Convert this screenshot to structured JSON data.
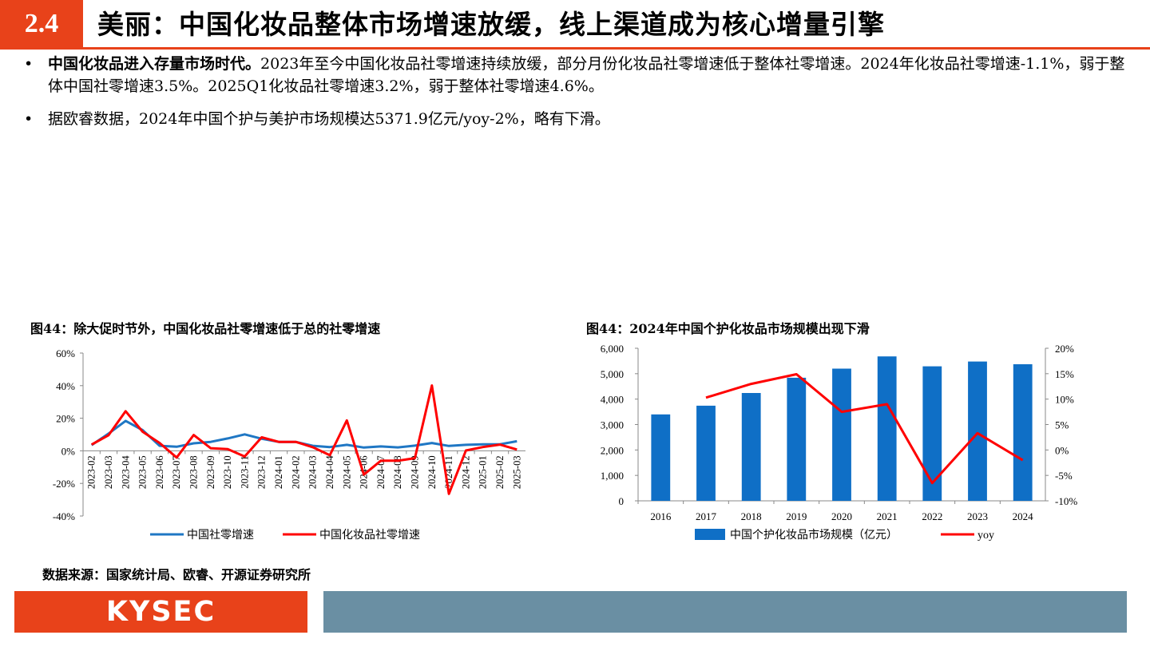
{
  "header": {
    "section_number": "2.4",
    "title": "美丽：中国化妆品整体市场增速放缓，线上渠道成为核心增量引擎"
  },
  "bullets": [
    {
      "marker": "•",
      "bold": "中国化妆品进入存量市场时代。",
      "text": "2023年至今中国化妆品社零增速持续放缓，部分月份化妆品社零增速低于整体社零增速。2024年化妆品社零增速-1.1%，弱于整体中国社零增速3.5%。2025Q1化妆品社零增速3.2%，弱于整体社零增速4.6%。"
    },
    {
      "marker": "•",
      "bold": "",
      "text": "据欧睿数据，2024年中国个护与美护市场规模达5371.9亿元/yoy-2%，略有下滑。"
    }
  ],
  "figure_left": {
    "title": "图44：除大促时节外，中国化妆品社零增速低于总的社零增速"
  },
  "figure_right": {
    "title": "图44：2024年中国个护化妆品市场规模出现下滑"
  },
  "source": "数据来源：国家统计局、欧睿、开源证券研究所",
  "footer": {
    "logo": "KYSEC"
  },
  "colors": {
    "accent": "#e8421a",
    "footer_bar": "#6a8fa3",
    "series_blue": "#1f77c4",
    "series_red": "#ff0000",
    "bar_blue": "#0f6fc6"
  },
  "chart_data": [
    {
      "type": "line",
      "x": [
        "2023-02",
        "2023-03",
        "2023-04",
        "2023-05",
        "2023-06",
        "2023-07",
        "2023-08",
        "2023-09",
        "2023-10",
        "2023-11",
        "2023-12",
        "2024-01",
        "2024-02",
        "2024-03",
        "2024-04",
        "2024-05",
        "2024-06",
        "2024-07",
        "2024-08",
        "2024-09",
        "2024-10",
        "2024-11",
        "2024-12",
        "2025-01",
        "2025-02",
        "2025-03"
      ],
      "series": [
        {
          "name": "中国社零增速",
          "values": [
            3.5,
            10.6,
            18.4,
            12.7,
            3.1,
            2.5,
            4.6,
            5.5,
            7.6,
            10.1,
            7.4,
            5.5,
            5.5,
            3.1,
            2.3,
            3.7,
            2.0,
            2.7,
            2.1,
            3.2,
            4.8,
            3.0,
            3.7,
            4.0,
            4.0,
            5.9
          ]
        },
        {
          "name": "中国化妆品社零增速",
          "values": [
            3.8,
            9.6,
            24.3,
            11.7,
            4.8,
            -4.1,
            9.7,
            1.6,
            1.1,
            -3.5,
            8.3,
            5.5,
            5.5,
            2.2,
            -2.7,
            18.7,
            -14.6,
            -6.1,
            -6.1,
            -4.5,
            40.1,
            -26.4,
            0.2,
            2.3,
            3.8,
            0.8
          ]
        }
      ],
      "yticks": [
        "60%",
        "40%",
        "20%",
        "0%",
        "-20%",
        "-40%"
      ],
      "ylim": [
        -40,
        60
      ],
      "legend": "bottom"
    },
    {
      "type": "bar",
      "categories": [
        "2016",
        "2017",
        "2018",
        "2019",
        "2020",
        "2021",
        "2022",
        "2023",
        "2024"
      ],
      "series": [
        {
          "name": "中国个护化妆品市场规模（亿元）",
          "values": [
            3400,
            3740,
            4240,
            4840,
            5200,
            5680,
            5290,
            5480,
            5371.9
          ]
        },
        {
          "name": "yoy",
          "type": "line",
          "axis": "right",
          "values": [
            null,
            10.3,
            13.0,
            14.9,
            7.5,
            9.0,
            -6.5,
            3.3,
            -2.0
          ]
        }
      ],
      "yticks_left": [
        "6,000",
        "5,000",
        "4,000",
        "3,000",
        "2,000",
        "1,000",
        "0"
      ],
      "yticks_right": [
        "20%",
        "15%",
        "10%",
        "5%",
        "0%",
        "-5%",
        "-10%"
      ],
      "ylim_left": [
        0,
        6000
      ],
      "ylim_right": [
        -10,
        20
      ],
      "legend": "bottom"
    }
  ]
}
